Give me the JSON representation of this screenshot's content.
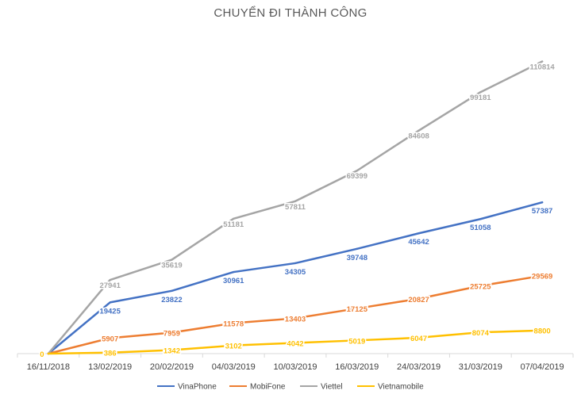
{
  "chart_data": {
    "type": "line",
    "title": "CHUYỂN ĐI THÀNH CÔNG",
    "categories": [
      "16/11/2018",
      "13/02/2019",
      "20/02/2019",
      "04/03/2019",
      "10/03/2019",
      "16/03/2019",
      "24/03/2019",
      "31/03/2019",
      "07/04/2019"
    ],
    "ylim": [
      0,
      120000
    ],
    "grid": false,
    "legend_position": "bottom",
    "series": [
      {
        "name": "VinaPhone",
        "color": "#4472C4",
        "values": [
          0,
          19425,
          23822,
          30961,
          34305,
          39748,
          45642,
          51058,
          57387
        ]
      },
      {
        "name": "MobiFone",
        "color": "#ED7D31",
        "values": [
          0,
          5907,
          7959,
          11578,
          13403,
          17125,
          20827,
          25725,
          29569
        ]
      },
      {
        "name": "Viettel",
        "color": "#A5A5A5",
        "values": [
          0,
          27941,
          35619,
          51181,
          57811,
          69399,
          84608,
          99181,
          110814
        ]
      },
      {
        "name": "Vietnamobile",
        "color": "#FFC000",
        "values": [
          0,
          386,
          1342,
          3102,
          4042,
          5019,
          6047,
          8074,
          8800
        ]
      }
    ]
  }
}
